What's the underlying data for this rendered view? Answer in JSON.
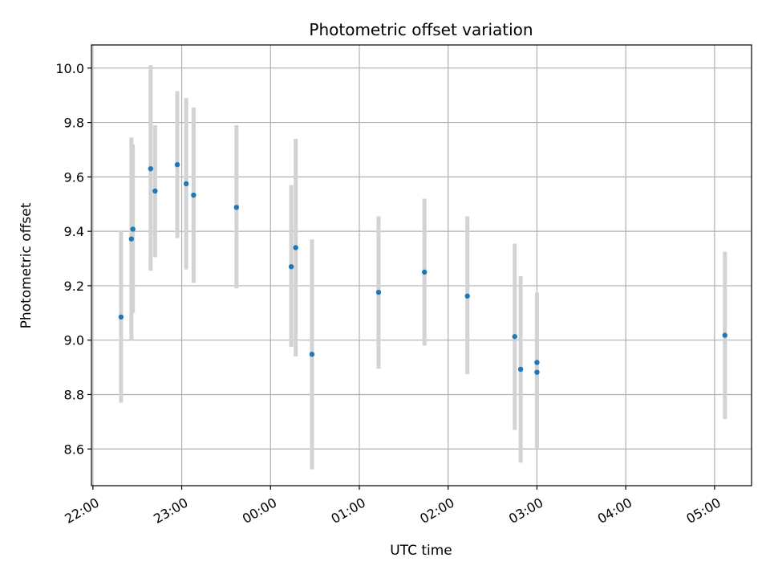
{
  "chart_data": {
    "type": "scatter",
    "title": "Photometric offset variation",
    "xlabel": "UTC time",
    "ylabel": "Photometric offset",
    "x_tick_labels": [
      "22:00",
      "23:00",
      "00:00",
      "01:00",
      "02:00",
      "03:00",
      "04:00",
      "05:00"
    ],
    "x_ticks": [
      "22:00",
      "23:00",
      "00:00",
      "01:00",
      "02:00",
      "03:00",
      "04:00",
      "05:00"
    ],
    "y_ticks": [
      8.6,
      8.8,
      9.0,
      9.2,
      9.4,
      9.6,
      9.8,
      10.0
    ],
    "y_tick_labels": [
      "8.6",
      "8.8",
      "9.0",
      "9.2",
      "9.4",
      "9.6",
      "9.8",
      "10.0"
    ],
    "xlim": [
      "21:59",
      "05:25"
    ],
    "ylim": [
      8.465,
      10.085
    ],
    "grid": true,
    "marker_color": "#1f77b4",
    "errorbar_color": "#d3d3d3",
    "points": [
      {
        "time": "22:19",
        "value": 9.085,
        "err_low": 8.77,
        "err_high": 9.4
      },
      {
        "time": "22:26",
        "value": 9.372,
        "err_low": 9.0,
        "err_high": 9.745
      },
      {
        "time": "22:27",
        "value": 9.408,
        "err_low": 9.1,
        "err_high": 9.72
      },
      {
        "time": "22:39",
        "value": 9.63,
        "err_low": 9.255,
        "err_high": 10.01
      },
      {
        "time": "22:42",
        "value": 9.548,
        "err_low": 9.305,
        "err_high": 9.79
      },
      {
        "time": "22:57",
        "value": 9.645,
        "err_low": 9.375,
        "err_high": 9.915
      },
      {
        "time": "23:03",
        "value": 9.575,
        "err_low": 9.26,
        "err_high": 9.89
      },
      {
        "time": "23:08",
        "value": 9.533,
        "err_low": 9.21,
        "err_high": 9.855
      },
      {
        "time": "23:37",
        "value": 9.488,
        "err_low": 9.19,
        "err_high": 9.79
      },
      {
        "time": "00:14",
        "value": 9.27,
        "err_low": 8.975,
        "err_high": 9.57
      },
      {
        "time": "00:17",
        "value": 9.34,
        "err_low": 8.94,
        "err_high": 9.74
      },
      {
        "time": "00:28",
        "value": 8.948,
        "err_low": 8.525,
        "err_high": 9.37
      },
      {
        "time": "01:13",
        "value": 9.176,
        "err_low": 8.895,
        "err_high": 9.455
      },
      {
        "time": "01:44",
        "value": 9.25,
        "err_low": 8.98,
        "err_high": 9.52
      },
      {
        "time": "02:13",
        "value": 9.162,
        "err_low": 8.875,
        "err_high": 9.455
      },
      {
        "time": "02:45",
        "value": 9.013,
        "err_low": 8.67,
        "err_high": 9.355
      },
      {
        "time": "02:49",
        "value": 8.893,
        "err_low": 8.55,
        "err_high": 9.235
      },
      {
        "time": "03:00",
        "value": 8.918,
        "err_low": 8.665,
        "err_high": 9.175
      },
      {
        "time": "03:00",
        "value": 8.882,
        "err_low": 8.6,
        "err_high": 9.16
      },
      {
        "time": "05:07",
        "value": 9.018,
        "err_low": 8.71,
        "err_high": 9.325
      }
    ]
  }
}
